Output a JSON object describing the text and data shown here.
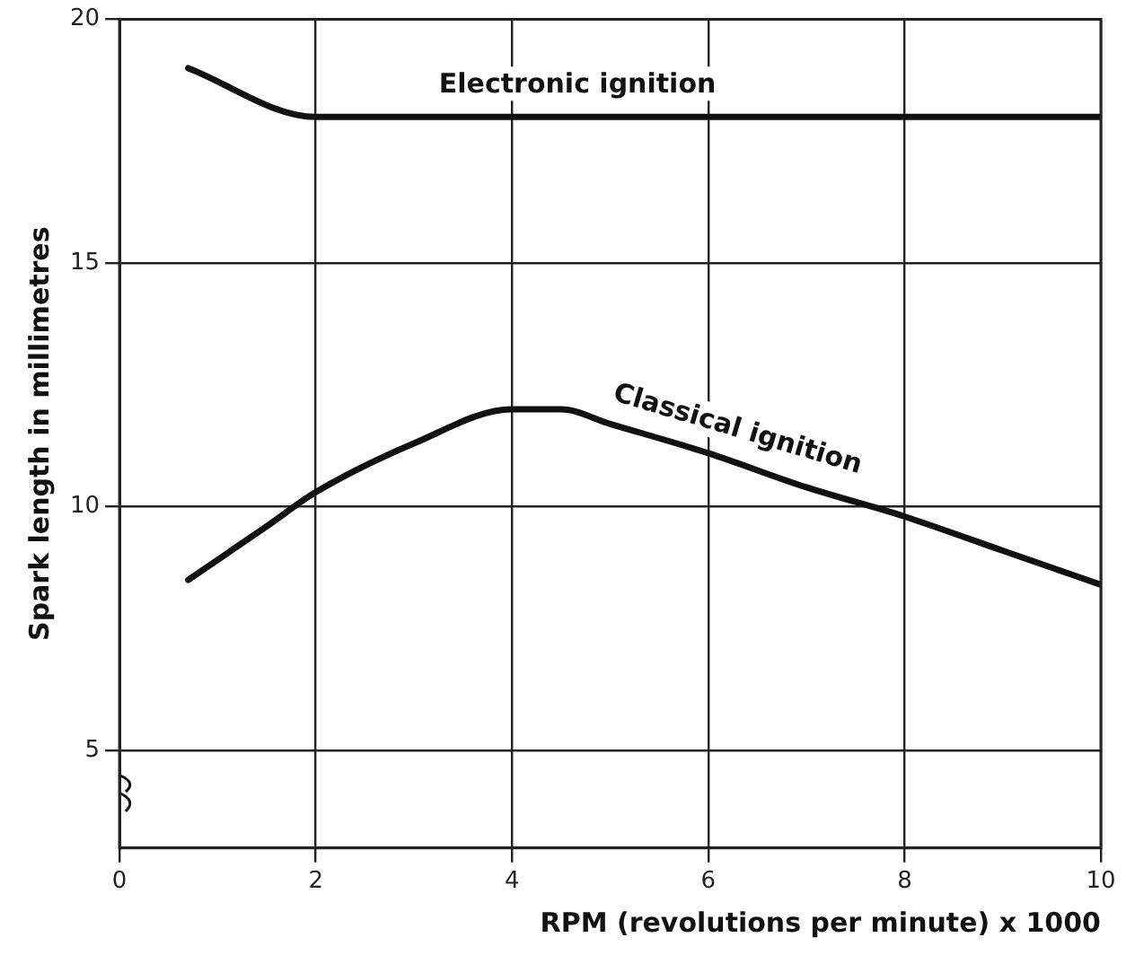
{
  "chart_data": {
    "type": "line",
    "xlabel": "RPM (revolutions per minute) x 1000",
    "ylabel": "Spark length in millimetres",
    "xlim": [
      0,
      10
    ],
    "xticks": [
      0,
      2,
      4,
      6,
      8,
      10
    ],
    "ylim": [
      3,
      20
    ],
    "yticks": [
      5,
      10,
      15,
      20
    ],
    "grid": true,
    "legend": false,
    "marker": "none",
    "line_style": "solid",
    "series": [
      {
        "name": "Electronic ignition",
        "color": "#111111",
        "x": [
          0.7,
          2,
          4,
          6,
          8,
          10
        ],
        "values": [
          19,
          18,
          18,
          18,
          18,
          18
        ]
      },
      {
        "name": "Classical ignition",
        "color": "#111111",
        "x": [
          0.7,
          1.5,
          2,
          3,
          4,
          4.5,
          5,
          6,
          7,
          8,
          9,
          10
        ],
        "values": [
          8.5,
          9.6,
          10.3,
          11.3,
          12,
          12,
          11.7,
          11.1,
          10.4,
          9.8,
          9.1,
          8.4
        ]
      }
    ]
  }
}
